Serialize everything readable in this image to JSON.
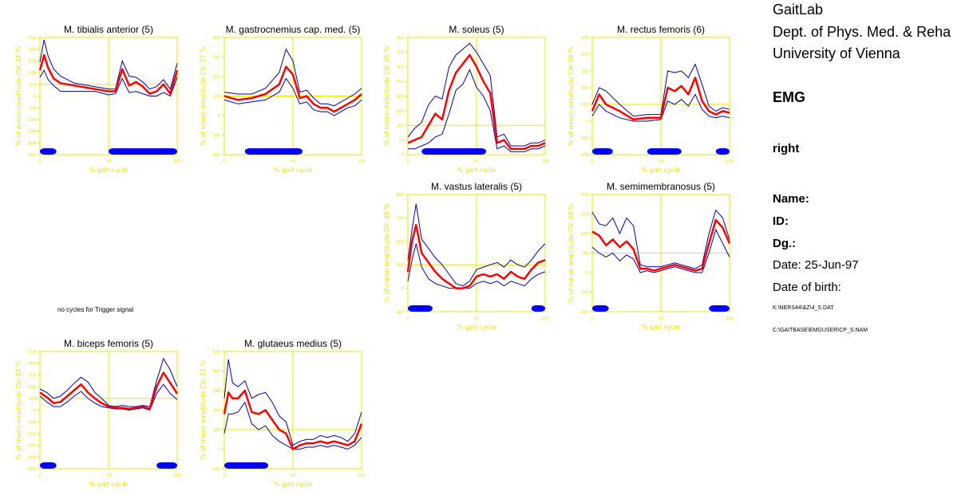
{
  "header": {
    "line1": "GaitLab",
    "line2": "Dept. of Phys. Med. & Reha",
    "line3": "University of Vienna",
    "section": "EMG",
    "side": "right",
    "name_label": "Name:",
    "id_label": "ID:",
    "dg_label": "Dg.:",
    "date": "Date: 25-Jun-97",
    "dob": "Date of birth:",
    "file1": "K:\\NERS44\\&Z\\4_S.DAT",
    "file2": "C:\\GAITBASE\\EMGUSER\\CP_S.NAM"
  },
  "no_trigger_msg": "no cycles for Trigger signal",
  "colors": {
    "axis": "#e8e800",
    "mean": "#ff0000",
    "band": "#0000aa",
    "bar": "#0000ff"
  },
  "chart_data": [
    {
      "type": "line",
      "title": "M. tibialis anterior (5)",
      "ylabel": "% of mean amplitude  CV: 42 %",
      "xlabel": "% gait cycle",
      "xlim": [
        0,
        100
      ],
      "xticks": [
        "0",
        "50",
        "100"
      ],
      "ylim": [
        -500,
        500
      ],
      "yticks": [
        "500",
        "400",
        "300",
        "200",
        "100",
        "0",
        "-100",
        "-200",
        "-300",
        "-400",
        "-500"
      ],
      "ref": 100,
      "series": {
        "x": [
          0,
          3,
          6,
          10,
          15,
          25,
          40,
          50,
          55,
          60,
          65,
          70,
          75,
          80,
          85,
          90,
          95,
          100
        ],
        "mean": [
          220,
          350,
          240,
          150,
          110,
          90,
          60,
          40,
          40,
          230,
          90,
          120,
          80,
          20,
          40,
          100,
          20,
          220
        ],
        "upper": [
          290,
          480,
          340,
          230,
          170,
          110,
          80,
          60,
          60,
          300,
          170,
          160,
          120,
          60,
          80,
          140,
          60,
          280
        ],
        "lower": [
          160,
          220,
          140,
          90,
          40,
          40,
          40,
          10,
          20,
          150,
          30,
          40,
          20,
          0,
          0,
          30,
          0,
          160
        ]
      },
      "stance": [
        [
          0,
          12
        ],
        [
          50,
          100
        ]
      ]
    },
    {
      "type": "line",
      "title": "M. gastrocnemius cap. med. (5)",
      "ylabel": "% of mean amplitude  CV: 27 %",
      "xlabel": "% gait cycle",
      "xlim": [
        0,
        100
      ],
      "xticks": [
        "0",
        "50",
        "100"
      ],
      "ylim": [
        -200,
        400
      ],
      "yticks": [
        "400",
        "300",
        "200",
        "100",
        "0",
        "-100",
        "-200"
      ],
      "ref": 100,
      "series": {
        "x": [
          0,
          10,
          20,
          30,
          40,
          45,
          50,
          55,
          60,
          65,
          70,
          75,
          80,
          85,
          90,
          95,
          100
        ],
        "mean": [
          100,
          80,
          90,
          110,
          160,
          250,
          210,
          90,
          100,
          60,
          40,
          40,
          20,
          40,
          60,
          80,
          110
        ],
        "upper": [
          120,
          110,
          110,
          140,
          220,
          340,
          280,
          120,
          130,
          90,
          60,
          60,
          50,
          70,
          90,
          110,
          140
        ],
        "lower": [
          80,
          60,
          70,
          80,
          120,
          190,
          140,
          60,
          70,
          30,
          20,
          20,
          0,
          20,
          40,
          50,
          80
        ]
      },
      "stance": [
        [
          15,
          57
        ]
      ]
    },
    {
      "type": "line",
      "title": "M. soleus (5)",
      "ylabel": "% of mean amplitude  CV: 26 %",
      "xlabel": "% gait cycle",
      "xlim": [
        0,
        100
      ],
      "xticks": [
        "0",
        "50",
        "100"
      ],
      "ylim": [
        0,
        400
      ],
      "yticks": [
        "400",
        "350",
        "300",
        "250",
        "200",
        "150",
        "100",
        "50",
        "0"
      ],
      "ref": 100,
      "series": {
        "x": [
          0,
          5,
          10,
          15,
          20,
          25,
          30,
          35,
          40,
          45,
          50,
          55,
          60,
          65,
          70,
          75,
          80,
          85,
          90,
          95,
          100
        ],
        "mean": [
          40,
          50,
          60,
          100,
          140,
          120,
          220,
          280,
          310,
          340,
          300,
          250,
          210,
          40,
          50,
          20,
          20,
          20,
          30,
          30,
          40
        ],
        "upper": [
          60,
          90,
          110,
          170,
          200,
          190,
          300,
          340,
          360,
          380,
          350,
          310,
          270,
          60,
          70,
          30,
          30,
          30,
          40,
          40,
          50
        ],
        "lower": [
          20,
          20,
          30,
          40,
          60,
          70,
          140,
          220,
          240,
          290,
          230,
          200,
          150,
          20,
          30,
          10,
          10,
          10,
          20,
          20,
          30
        ]
      },
      "stance": [
        [
          10,
          57
        ]
      ]
    },
    {
      "type": "line",
      "title": "M. rectus femoris (6)",
      "ylabel": "% of mean amplitude  CV: 39 %",
      "xlabel": "% gait cycle",
      "xlim": [
        0,
        100
      ],
      "xticks": [
        "0",
        "50",
        "100"
      ],
      "ylim": [
        -200,
        500
      ],
      "yticks": [
        "500",
        "400",
        "300",
        "200",
        "100",
        "0",
        "-100",
        "-200"
      ],
      "ref": 100,
      "series": {
        "x": [
          0,
          5,
          10,
          20,
          30,
          40,
          50,
          55,
          60,
          65,
          70,
          75,
          80,
          85,
          90,
          95,
          100
        ],
        "mean": [
          60,
          160,
          100,
          60,
          10,
          20,
          20,
          200,
          180,
          210,
          160,
          260,
          120,
          60,
          40,
          60,
          50
        ],
        "upper": [
          100,
          200,
          180,
          100,
          30,
          40,
          40,
          300,
          290,
          300,
          260,
          340,
          220,
          90,
          60,
          80,
          70
        ],
        "lower": [
          30,
          100,
          60,
          20,
          0,
          0,
          10,
          120,
          100,
          130,
          90,
          160,
          70,
          30,
          20,
          30,
          20
        ]
      },
      "stance": [
        [
          0,
          15
        ],
        [
          40,
          65
        ],
        [
          90,
          100
        ]
      ]
    },
    {
      "type": "line",
      "title": "M. vastus lateralis (5)",
      "ylabel": "% of mean amplitude  CV: 39 %",
      "xlabel": "% gait cycle",
      "xlim": [
        0,
        100
      ],
      "xticks": [
        "0",
        "50",
        "100"
      ],
      "ylim": [
        -100,
        400
      ],
      "yticks": [
        "400",
        "300",
        "200",
        "100",
        "0",
        "-100"
      ],
      "ref": 100,
      "series": {
        "x": [
          0,
          3,
          6,
          10,
          15,
          20,
          25,
          30,
          35,
          40,
          45,
          50,
          55,
          60,
          65,
          70,
          75,
          80,
          85,
          90,
          95,
          100
        ],
        "mean": [
          70,
          200,
          270,
          150,
          110,
          70,
          40,
          20,
          0,
          0,
          10,
          50,
          60,
          50,
          60,
          40,
          70,
          50,
          40,
          80,
          110,
          120
        ],
        "upper": [
          120,
          250,
          360,
          210,
          170,
          130,
          100,
          60,
          20,
          10,
          30,
          80,
          90,
          100,
          110,
          90,
          120,
          100,
          90,
          120,
          160,
          190
        ],
        "lower": [
          30,
          120,
          190,
          90,
          40,
          20,
          10,
          0,
          0,
          0,
          0,
          20,
          30,
          20,
          30,
          10,
          30,
          20,
          10,
          40,
          60,
          70
        ],
        "scale": 1
      },
      "stance": [
        [
          0,
          18
        ],
        [
          90,
          100
        ]
      ]
    },
    {
      "type": "line",
      "title": "M. semimembranosus (5)",
      "ylabel": "% of mean amplitude  CV: 40 %",
      "xlabel": "% gait cycle",
      "xlim": [
        0,
        100
      ],
      "xticks": [
        "0",
        "50",
        "100"
      ],
      "ylim": [
        -200,
        400
      ],
      "yticks": [
        "400",
        "300",
        "200",
        "100",
        "0",
        "-100",
        "-200"
      ],
      "ref": 100,
      "series": {
        "x": [
          0,
          5,
          10,
          15,
          20,
          25,
          30,
          35,
          40,
          45,
          50,
          55,
          60,
          65,
          70,
          75,
          80,
          85,
          90,
          95,
          100
        ],
        "mean": [
          210,
          190,
          140,
          170,
          130,
          160,
          120,
          20,
          20,
          10,
          20,
          30,
          40,
          30,
          20,
          10,
          20,
          150,
          270,
          230,
          150
        ],
        "upper": [
          310,
          250,
          240,
          280,
          200,
          280,
          240,
          40,
          30,
          30,
          30,
          40,
          50,
          40,
          30,
          20,
          40,
          200,
          320,
          280,
          170
        ],
        "lower": [
          130,
          100,
          80,
          100,
          60,
          90,
          70,
          0,
          10,
          0,
          10,
          20,
          30,
          20,
          10,
          0,
          0,
          100,
          220,
          150,
          80
        ]
      },
      "stance": [
        [
          0,
          12
        ],
        [
          85,
          100
        ]
      ]
    },
    {
      "type": "line",
      "title": "M. biceps femoris (5)",
      "ylabel": "% of mean amplitude  CV: 33 %",
      "xlabel": "% gait cycle",
      "xlim": [
        0,
        100
      ],
      "xticks": [
        "0",
        "50",
        "100"
      ],
      "ylim": [
        -500,
        500
      ],
      "yticks": [
        "500",
        "400",
        "300",
        "200",
        "100",
        "0",
        "-100",
        "-200",
        "-300",
        "-400",
        "-500"
      ],
      "ref": 100,
      "series": {
        "x": [
          0,
          5,
          10,
          15,
          20,
          25,
          30,
          35,
          40,
          45,
          50,
          55,
          60,
          65,
          70,
          75,
          80,
          85,
          90,
          95,
          100
        ],
        "mean": [
          150,
          110,
          60,
          70,
          120,
          170,
          220,
          150,
          100,
          60,
          30,
          20,
          20,
          10,
          20,
          30,
          10,
          200,
          320,
          230,
          140
        ],
        "upper": [
          180,
          150,
          100,
          120,
          170,
          230,
          280,
          240,
          150,
          100,
          40,
          30,
          40,
          30,
          30,
          40,
          30,
          250,
          440,
          340,
          200
        ],
        "lower": [
          120,
          70,
          30,
          30,
          70,
          120,
          160,
          100,
          60,
          30,
          20,
          10,
          10,
          0,
          10,
          20,
          0,
          140,
          220,
          140,
          90
        ]
      },
      "stance": [
        [
          0,
          12
        ],
        [
          85,
          100
        ]
      ]
    },
    {
      "type": "line",
      "title": "M. glutaeus medius (5)",
      "ylabel": "% of mean amplitude  CV: 33 %",
      "xlabel": "% gait cycle",
      "xlim": [
        0,
        100
      ],
      "xticks": [
        "0",
        "50",
        "100"
      ],
      "ylim": [
        -100,
        500
      ],
      "yticks": [
        "500",
        "400",
        "300",
        "200",
        "100",
        "0",
        "-100"
      ],
      "ref": 100,
      "series": {
        "x": [
          0,
          3,
          6,
          10,
          15,
          20,
          25,
          30,
          35,
          40,
          45,
          50,
          55,
          60,
          65,
          70,
          75,
          80,
          85,
          90,
          95,
          100
        ],
        "mean": [
          180,
          290,
          260,
          260,
          300,
          190,
          180,
          200,
          150,
          100,
          80,
          0,
          20,
          30,
          30,
          40,
          30,
          40,
          30,
          20,
          40,
          130
        ],
        "upper": [
          260,
          460,
          340,
          320,
          350,
          260,
          280,
          290,
          240,
          170,
          140,
          20,
          40,
          50,
          50,
          70,
          60,
          70,
          60,
          40,
          80,
          190
        ],
        "lower": [
          80,
          180,
          180,
          190,
          240,
          130,
          100,
          120,
          70,
          40,
          20,
          0,
          0,
          10,
          10,
          20,
          10,
          20,
          10,
          0,
          20,
          60
        ]
      },
      "stance": [
        [
          0,
          32
        ]
      ]
    }
  ]
}
